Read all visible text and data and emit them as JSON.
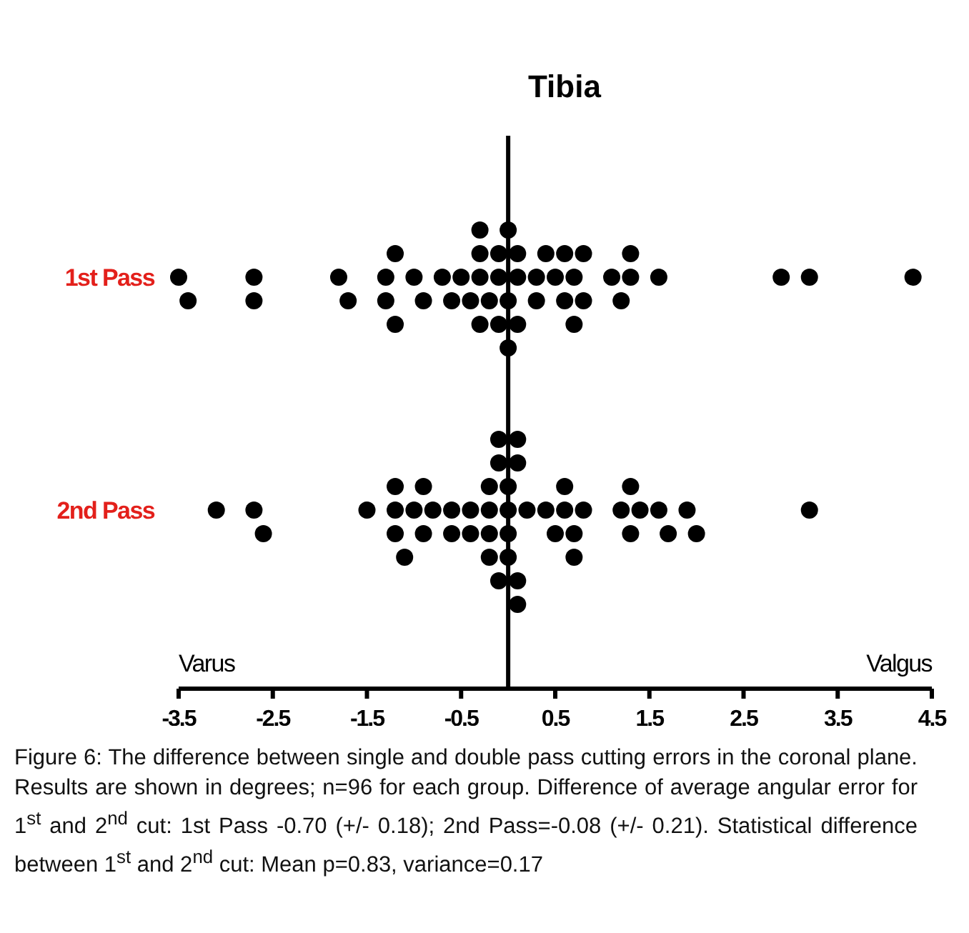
{
  "chart_data": {
    "type": "scatter",
    "title": "Tibia",
    "orientation": "horizontal",
    "categories": [
      "1st Pass",
      "2nd Pass"
    ],
    "series": [
      {
        "color": "#000000",
        "x": [
          "1st Pass",
          "1st Pass",
          "1st Pass",
          "1st Pass",
          "1st Pass",
          "1st Pass",
          "1st Pass",
          "1st Pass",
          "1st Pass",
          "1st Pass",
          "1st Pass",
          "1st Pass",
          "1st Pass",
          "1st Pass",
          "1st Pass",
          "1st Pass",
          "1st Pass",
          "1st Pass",
          "1st Pass",
          "1st Pass",
          "1st Pass",
          "1st Pass",
          "1st Pass",
          "1st Pass",
          "1st Pass",
          "1st Pass",
          "1st Pass",
          "1st Pass",
          "1st Pass",
          "1st Pass",
          "1st Pass",
          "1st Pass",
          "1st Pass",
          "1st Pass",
          "1st Pass",
          "1st Pass",
          "1st Pass",
          "1st Pass",
          "1st Pass",
          "1st Pass",
          "1st Pass",
          "1st Pass",
          "1st Pass",
          "1st Pass",
          "1st Pass",
          "1st Pass",
          "1st Pass",
          "1st Pass"
        ],
        "values": [
          -3.4,
          -3.5,
          -2.7,
          -2.7,
          -1.7,
          -1.8,
          -1.2,
          -1.3,
          -1.3,
          -1.2,
          -0.9,
          -1.0,
          -0.7,
          -0.6,
          -0.5,
          -0.4,
          -0.3,
          -0.3,
          -0.2,
          -0.3,
          -0.3,
          -0.1,
          -0.1,
          -0.1,
          0,
          0.1,
          0.1,
          0.1,
          0,
          0,
          0.3,
          0.3,
          0.4,
          0.5,
          0.8,
          1.3,
          0.7,
          1.2,
          0.6,
          1.1,
          1.6,
          2.9,
          3.2,
          4.3,
          0.6,
          1.3,
          0.7,
          0.8
        ]
      },
      {
        "color": "#000000",
        "x": [
          "2nd Pass",
          "2nd Pass",
          "2nd Pass",
          "2nd Pass",
          "2nd Pass",
          "2nd Pass",
          "2nd Pass",
          "2nd Pass",
          "2nd Pass",
          "2nd Pass",
          "2nd Pass",
          "2nd Pass",
          "2nd Pass",
          "2nd Pass",
          "2nd Pass",
          "2nd Pass",
          "2nd Pass",
          "2nd Pass",
          "2nd Pass",
          "2nd Pass",
          "2nd Pass",
          "2nd Pass",
          "2nd Pass",
          "2nd Pass",
          "2nd Pass",
          "2nd Pass",
          "2nd Pass",
          "2nd Pass",
          "2nd Pass",
          "2nd Pass",
          "2nd Pass",
          "2nd Pass",
          "2nd Pass",
          "2nd Pass",
          "2nd Pass",
          "2nd Pass",
          "2nd Pass",
          "2nd Pass",
          "2nd Pass",
          "2nd Pass",
          "2nd Pass",
          "2nd Pass",
          "2nd Pass",
          "2nd Pass",
          "2nd Pass",
          "2nd Pass",
          "2nd Pass",
          "2nd Pass"
        ],
        "values": [
          -3.1,
          -2.7,
          -2.6,
          -1.5,
          -1.2,
          -1.2,
          -1.2,
          -1.1,
          -1.0,
          -0.9,
          -0.9,
          -0.8,
          -0.6,
          -0.6,
          -0.4,
          -0.4,
          -0.2,
          -0.2,
          -0.2,
          -0.2,
          -0.1,
          -0.1,
          -0.1,
          0,
          0,
          0,
          0,
          0.1,
          0.1,
          0.1,
          0.1,
          0.2,
          0.4,
          0.6,
          1.4,
          0.5,
          0.8,
          1.3,
          2.0,
          0.7,
          1.2,
          1.6,
          1.9,
          3.2,
          0.6,
          0.7,
          1.3,
          1.7
        ]
      }
    ],
    "xlim": [
      -3.5,
      4.5
    ],
    "xticks": [
      -3.5,
      -2.5,
      -1.5,
      -0.5,
      0.5,
      1.5,
      2.5,
      3.5,
      4.5
    ],
    "marker": "circle",
    "grid": false,
    "ref_lines": [
      {
        "axis": "x",
        "value": 0,
        "color": "#000000"
      }
    ],
    "annotations": [
      "Varus",
      "Valgus",
      "Figure 6: The difference between single and double pass cutting errors in the coronal plane. Results are shown in degrees; n=96 for each group. Difference of average angular error for 1$^{st}$ and 2$^{nd}$ cut: 1st Pass -0.70 (+/- 0.18); 2nd Pass=-0.08 (+/- 0.21).  Statistical difference between 1$^{st}$ and 2$^{nd}$ cut: Mean p=0.83, variance=0.17"
    ]
  }
}
